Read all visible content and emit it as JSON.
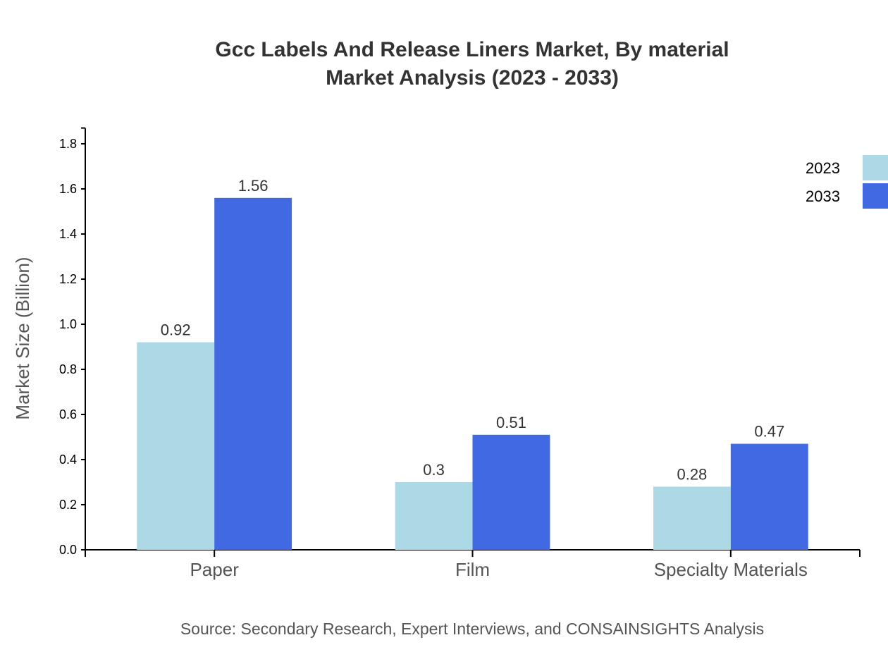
{
  "chart_data": {
    "type": "bar",
    "title": "Gcc Labels And Release Liners Market, By material",
    "subtitle": "Market Analysis (2023 - 2033)",
    "xlabel": "",
    "ylabel": "Market Size (Billion)",
    "categories": [
      "Paper",
      "Film",
      "Specialty Materials"
    ],
    "series": [
      {
        "name": "2023",
        "values": [
          0.92,
          0.3,
          0.28
        ],
        "labels": [
          "0.92",
          "0.3",
          "0.28"
        ],
        "color": "#add8e6"
      },
      {
        "name": "2033",
        "values": [
          1.56,
          0.51,
          0.47
        ],
        "labels": [
          "1.56",
          "0.51",
          "0.47"
        ],
        "color": "#4169e1"
      }
    ],
    "ylim": [
      0,
      1.87
    ],
    "yticks": [
      "0.0",
      "0.2",
      "0.4",
      "0.6",
      "0.8",
      "1.0",
      "1.2",
      "1.4",
      "1.6",
      "1.8"
    ],
    "grid": false,
    "legend": "top-right",
    "source": "Source: Secondary Research, Expert Interviews, and CONSAINSIGHTS Analysis"
  }
}
